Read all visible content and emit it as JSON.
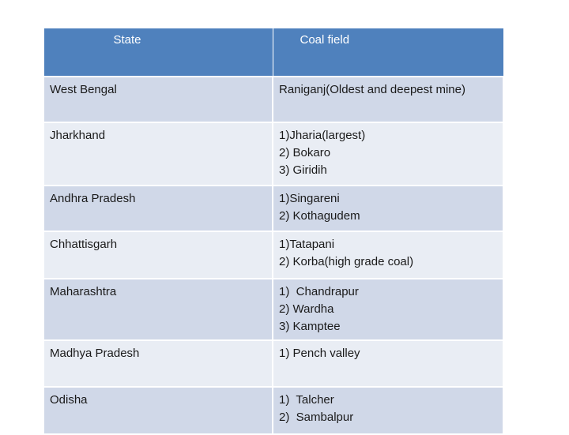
{
  "table": {
    "headers": {
      "state": "State",
      "coal_field": "Coal field"
    },
    "rows": [
      {
        "state": "West Bengal",
        "fields": [
          "Raniganj(Oldest and deepest mine)"
        ]
      },
      {
        "state": "Jharkhand",
        "fields": [
          "1)Jharia(largest)",
          "2) Bokaro",
          "3) Giridih"
        ]
      },
      {
        "state": "Andhra Pradesh",
        "fields": [
          "1)Singareni",
          "2) Kothagudem"
        ]
      },
      {
        "state": "Chhattisgarh",
        "fields": [
          "1)Tatapani",
          "2) Korba(high grade coal)"
        ]
      },
      {
        "state": "Maharashtra",
        "fields": [
          "1)  Chandrapur",
          "2) Wardha",
          "3) Kamptee"
        ]
      },
      {
        "state": "Madhya Pradesh",
        "fields": [
          "1) Pench valley"
        ]
      },
      {
        "state": "Odisha",
        "fields": [
          "1)  Talcher",
          "2)  Sambalpur"
        ]
      }
    ]
  },
  "colors": {
    "header_bg": "#4f81bd",
    "row_odd_bg": "#d0d8e8",
    "row_even_bg": "#e9edf4"
  }
}
